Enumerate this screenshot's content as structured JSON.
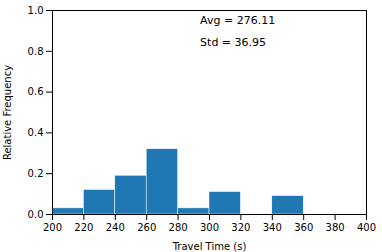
{
  "chart_data": {
    "type": "histogram",
    "bins": [
      200,
      220,
      240,
      260,
      280,
      300,
      320,
      340,
      360
    ],
    "values": [
      0.03,
      0.12,
      0.19,
      0.32,
      0.03,
      0.11,
      0.0,
      0.09
    ],
    "color": "#1f77b4",
    "xlabel": "Travel Time (s)",
    "ylabel": "Relative Frequency",
    "xlim": [
      200,
      400
    ],
    "ylim": [
      0,
      1.0
    ],
    "xticks": [
      200,
      220,
      240,
      260,
      280,
      300,
      320,
      340,
      360,
      380,
      400
    ],
    "yticks": [
      {
        "value": 0,
        "label": "0.0"
      },
      0.2,
      0.4,
      0.6,
      0.8,
      {
        "value": 1,
        "label": "1.0"
      }
    ],
    "annotations": [
      "Avg = 276.11",
      "Std = 36.95"
    ]
  }
}
